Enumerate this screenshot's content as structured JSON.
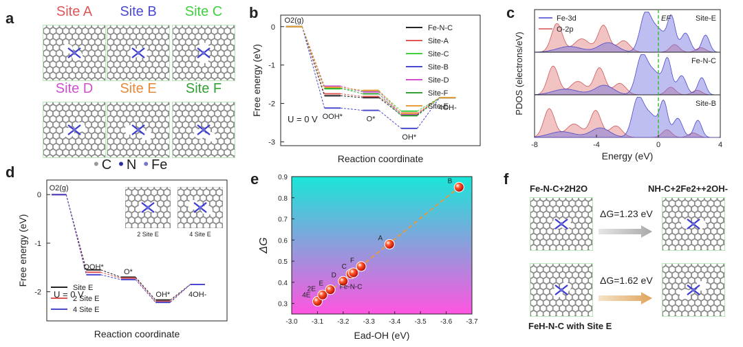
{
  "panel_letters": {
    "a": "a",
    "b": "b",
    "c": "c",
    "d": "d",
    "e": "e",
    "f": "f"
  },
  "panel_a": {
    "sites": [
      {
        "label": "Site A",
        "color": "#e05555"
      },
      {
        "label": "Site B",
        "color": "#4a4ad0"
      },
      {
        "label": "Site C",
        "color": "#3fcf3f"
      },
      {
        "label": "Site D",
        "color": "#d050d0"
      },
      {
        "label": "Site E",
        "color": "#e8893a"
      },
      {
        "label": "Site F",
        "color": "#33a033"
      }
    ],
    "legend": [
      {
        "symbol": "•",
        "label": "C",
        "color": "#999999"
      },
      {
        "symbol": "•",
        "label": "N",
        "color": "#2b2ba8"
      },
      {
        "symbol": "•",
        "label": "Fe",
        "color": "#7777cc"
      }
    ]
  },
  "chart_data": [
    {
      "panel": "b",
      "type": "line",
      "xlabel": "Reaction coordinate",
      "ylabel": "Free energy (eV)",
      "ylim": [
        -3.1,
        0.3
      ],
      "yticks": [
        "0",
        "-1",
        "-2",
        "-3"
      ],
      "condition": "U = 0 V",
      "step_labels": [
        "O2(g)",
        "OOH*",
        "O*",
        "OH*",
        "4OH-"
      ],
      "series": [
        {
          "name": "Fe-N-C",
          "color": "#222222",
          "values": [
            0,
            -1.8,
            -1.85,
            -2.3,
            -1.85
          ]
        },
        {
          "name": "Site-A",
          "color": "#e05555",
          "values": [
            0,
            -1.75,
            -1.82,
            -2.25,
            -1.85
          ]
        },
        {
          "name": "Site-C",
          "color": "#3fcf3f",
          "values": [
            0,
            -1.62,
            -1.68,
            -2.2,
            -1.85
          ]
        },
        {
          "name": "Site-B",
          "color": "#4a4ad0",
          "values": [
            0,
            -2.12,
            -2.18,
            -2.65,
            -1.85
          ]
        },
        {
          "name": "Site-D",
          "color": "#d050d0",
          "values": [
            0,
            -1.55,
            -1.7,
            -2.28,
            -1.85
          ]
        },
        {
          "name": "Site-F",
          "color": "#33a033",
          "values": [
            0,
            -1.6,
            -1.75,
            -2.32,
            -1.85
          ]
        },
        {
          "name": "Site-E",
          "color": "#e8a03a",
          "values": [
            0,
            -1.58,
            -1.66,
            -2.26,
            -1.85
          ]
        }
      ]
    },
    {
      "panel": "c",
      "type": "area",
      "xlabel": "Energy (eV)",
      "ylabel": "PDOS (electrons/eV)",
      "xlim": [
        -8,
        4
      ],
      "xticks": [
        "-8",
        "-4",
        "0",
        "4"
      ],
      "fermi_label": "EF",
      "series_names": [
        {
          "name": "Fe-3d",
          "color": "#6f6fe0"
        },
        {
          "name": "O-2p",
          "color": "#e07a7a"
        }
      ],
      "subpanels": [
        "Site-E",
        "Fe-N-C",
        "Site-B"
      ]
    },
    {
      "panel": "d",
      "type": "line",
      "xlabel": "Reaction coordinate",
      "ylabel": "Free energy (eV)",
      "ylim": [
        -2.6,
        0.3
      ],
      "yticks": [
        "0",
        "-1",
        "-2"
      ],
      "condition": "U = 0 V",
      "step_labels": [
        "O2(g)",
        "OOH*",
        "O*",
        "OH*",
        "4OH-"
      ],
      "inset_labels": [
        "2 Site E",
        "4 Site E"
      ],
      "series": [
        {
          "name": "Site E",
          "color": "#222222",
          "values": [
            0,
            -1.55,
            -1.7,
            -2.17,
            -1.85
          ]
        },
        {
          "name": "2 Site E",
          "color": "#e05555",
          "values": [
            0,
            -1.6,
            -1.72,
            -2.2,
            -1.85
          ]
        },
        {
          "name": "4 Site E",
          "color": "#4a4ad0",
          "values": [
            0,
            -1.65,
            -1.75,
            -2.22,
            -1.85
          ]
        }
      ]
    },
    {
      "panel": "e",
      "type": "scatter",
      "xlabel": "Ead-OH (eV)",
      "ylabel": "ΔG",
      "xlim": [
        -3.0,
        -3.7
      ],
      "ylim": [
        0.25,
        0.9
      ],
      "xticks": [
        "-3.0",
        "-3.1",
        "-3.2",
        "-3.3",
        "-3.4",
        "-3.5",
        "-3.6",
        "-3.7"
      ],
      "yticks": [
        "0.3",
        "0.4",
        "0.5",
        "0.6",
        "0.7",
        "0.8",
        "0.9"
      ],
      "points": [
        {
          "label": "4E",
          "x": -3.1,
          "y": 0.31
        },
        {
          "label": "2E",
          "x": -3.12,
          "y": 0.34
        },
        {
          "label": "E",
          "x": -3.15,
          "y": 0.365
        },
        {
          "label": "D",
          "x": -3.2,
          "y": 0.405
        },
        {
          "label": "Fe-N-C",
          "x": -3.23,
          "y": 0.44
        },
        {
          "label": "C",
          "x": -3.24,
          "y": 0.445
        },
        {
          "label": "F",
          "x": -3.27,
          "y": 0.475
        },
        {
          "label": "A",
          "x": -3.38,
          "y": 0.58
        },
        {
          "label": "B",
          "x": -3.65,
          "y": 0.85
        }
      ]
    }
  ],
  "panel_f": {
    "left_top": "Fe-N-C+2H2O",
    "right_top": "NH-C+2Fe2++2OH-",
    "dg1": "ΔG=1.23 eV",
    "dg2": "ΔG=1.62 eV",
    "bottom_label": "FeH-N-C with Site E"
  }
}
